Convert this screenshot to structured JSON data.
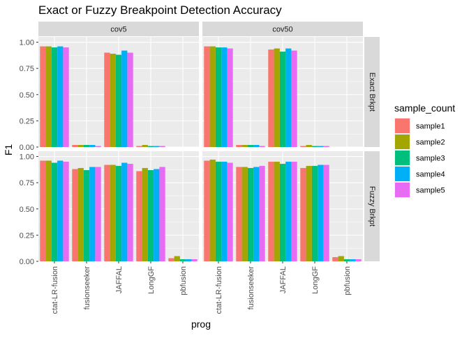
{
  "chart_data": {
    "type": "bar",
    "title": "Exact or Fuzzy Breakpoint Detection Accuracy",
    "xlabel": "prog",
    "ylabel": "F1",
    "ylim": [
      0,
      1.05
    ],
    "y_ticks": [
      "0.00",
      "0.25",
      "0.50",
      "0.75",
      "1.00"
    ],
    "grid": true,
    "legend_position": "right",
    "categories": [
      "ctat-LR-fusion",
      "fusionseeker",
      "JAFFAL",
      "LongGF",
      "pbfusion"
    ],
    "facet_columns": [
      "cov5",
      "cov50"
    ],
    "facet_rows": [
      "Exact Brkpt",
      "Fuzzy Brkpt"
    ],
    "legend": {
      "title": "sample_count",
      "items": [
        {
          "name": "sample1",
          "color": "#F8766D"
        },
        {
          "name": "sample2",
          "color": "#A3A500"
        },
        {
          "name": "sample3",
          "color": "#00BF7D"
        },
        {
          "name": "sample4",
          "color": "#00B0F6"
        },
        {
          "name": "sample5",
          "color": "#E76BF3"
        }
      ]
    },
    "panels": [
      {
        "col": "cov5",
        "row": "Exact Brkpt",
        "series": [
          {
            "name": "sample1",
            "values": [
              0.96,
              0.02,
              0.9,
              0.01,
              null
            ]
          },
          {
            "name": "sample2",
            "values": [
              0.96,
              0.02,
              0.89,
              0.02,
              null
            ]
          },
          {
            "name": "sample3",
            "values": [
              0.95,
              0.02,
              0.88,
              0.01,
              null
            ]
          },
          {
            "name": "sample4",
            "values": [
              0.96,
              0.02,
              0.92,
              0.01,
              null
            ]
          },
          {
            "name": "sample5",
            "values": [
              0.95,
              0.01,
              0.9,
              0.01,
              null
            ]
          }
        ]
      },
      {
        "col": "cov50",
        "row": "Exact Brkpt",
        "series": [
          {
            "name": "sample1",
            "values": [
              0.96,
              0.02,
              0.93,
              0.01,
              null
            ]
          },
          {
            "name": "sample2",
            "values": [
              0.96,
              0.02,
              0.94,
              0.02,
              null
            ]
          },
          {
            "name": "sample3",
            "values": [
              0.95,
              0.02,
              0.91,
              0.01,
              null
            ]
          },
          {
            "name": "sample4",
            "values": [
              0.95,
              0.02,
              0.94,
              0.01,
              null
            ]
          },
          {
            "name": "sample5",
            "values": [
              0.94,
              0.01,
              0.92,
              0.01,
              null
            ]
          }
        ]
      },
      {
        "col": "cov5",
        "row": "Fuzzy Brkpt",
        "series": [
          {
            "name": "sample1",
            "values": [
              0.96,
              0.88,
              0.92,
              0.86,
              0.03
            ]
          },
          {
            "name": "sample2",
            "values": [
              0.96,
              0.89,
              0.92,
              0.89,
              0.05
            ]
          },
          {
            "name": "sample3",
            "values": [
              0.94,
              0.87,
              0.91,
              0.87,
              0.02
            ]
          },
          {
            "name": "sample4",
            "values": [
              0.96,
              0.9,
              0.94,
              0.88,
              0.02
            ]
          },
          {
            "name": "sample5",
            "values": [
              0.95,
              0.9,
              0.93,
              0.9,
              0.02
            ]
          }
        ]
      },
      {
        "col": "cov50",
        "row": "Fuzzy Brkpt",
        "series": [
          {
            "name": "sample1",
            "values": [
              0.96,
              0.9,
              0.95,
              0.89,
              0.04
            ]
          },
          {
            "name": "sample2",
            "values": [
              0.97,
              0.9,
              0.95,
              0.91,
              0.05
            ]
          },
          {
            "name": "sample3",
            "values": [
              0.95,
              0.89,
              0.93,
              0.91,
              0.02
            ]
          },
          {
            "name": "sample4",
            "values": [
              0.95,
              0.9,
              0.95,
              0.92,
              0.02
            ]
          },
          {
            "name": "sample5",
            "values": [
              0.94,
              0.91,
              0.95,
              0.92,
              0.02
            ]
          }
        ]
      }
    ]
  }
}
